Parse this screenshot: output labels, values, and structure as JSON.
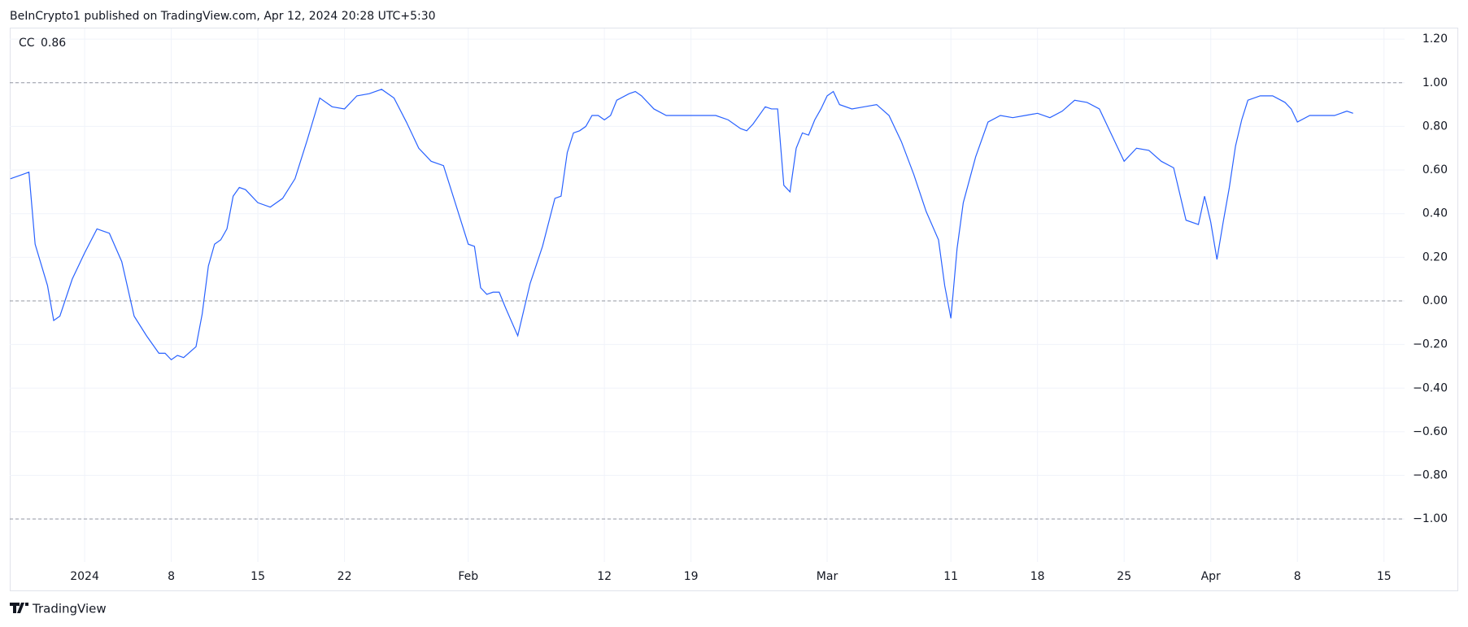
{
  "header": "BeInCrypto1 published on TradingView.com, Apr 12, 2024 20:28 UTC+5:30",
  "footer": "TradingView",
  "chart_data": {
    "type": "line",
    "legend_value": 0.86,
    "x": [
      -6,
      -5,
      -4.5,
      -4,
      -3,
      -2.5,
      -2,
      -1,
      0,
      1,
      1.5,
      2,
      3,
      4,
      5,
      6,
      6.5,
      7,
      7.5,
      8,
      9,
      9.5,
      10,
      10.5,
      11,
      11.5,
      12,
      12.5,
      13,
      14,
      15,
      16,
      17,
      18,
      19,
      20,
      21,
      22,
      23,
      24,
      25,
      26,
      27,
      28,
      29,
      30,
      31,
      31.5,
      32,
      32.5,
      33,
      33.5,
      34,
      35,
      36,
      37,
      38,
      38.5,
      39,
      39.5,
      40,
      40.5,
      41,
      41.5,
      42,
      42.5,
      43,
      44,
      44.5,
      45,
      46,
      47,
      48,
      49,
      50,
      51,
      52,
      53,
      53.5,
      54,
      55,
      55.5,
      56,
      56.5,
      57,
      57.5,
      58,
      58.5,
      59,
      59.5,
      60,
      60.5,
      61,
      62,
      63,
      64,
      65,
      66,
      67,
      68,
      69,
      69.5,
      70,
      70.5,
      71,
      72,
      73,
      74,
      75,
      76,
      77,
      78,
      79,
      80,
      81,
      82,
      83,
      84,
      85,
      86,
      87,
      88,
      89,
      90,
      90.5,
      91,
      91.5,
      92,
      92.5,
      93,
      93.5,
      94,
      95,
      96,
      97,
      97.5,
      98,
      99,
      100,
      101,
      102,
      102.5
    ],
    "series": [
      {
        "name": "CC",
        "color": "#2962ff",
        "values": [
          0.56,
          0.58,
          0.59,
          0.26,
          0.07,
          -0.09,
          -0.07,
          0.1,
          0.22,
          0.33,
          0.32,
          0.31,
          0.18,
          -0.07,
          -0.16,
          -0.24,
          -0.24,
          -0.27,
          -0.25,
          -0.26,
          -0.21,
          -0.06,
          0.16,
          0.26,
          0.28,
          0.33,
          0.48,
          0.52,
          0.51,
          0.45,
          0.43,
          0.47,
          0.56,
          0.74,
          0.93,
          0.89,
          0.88,
          0.94,
          0.95,
          0.97,
          0.93,
          0.82,
          0.7,
          0.64,
          0.62,
          0.44,
          0.26,
          0.25,
          0.06,
          0.03,
          0.04,
          0.04,
          -0.03,
          -0.16,
          0.08,
          0.25,
          0.47,
          0.48,
          0.68,
          0.77,
          0.78,
          0.8,
          0.85,
          0.85,
          0.83,
          0.85,
          0.92,
          0.95,
          0.96,
          0.94,
          0.88,
          0.85,
          0.85,
          0.85,
          0.85,
          0.85,
          0.83,
          0.79,
          0.78,
          0.81,
          0.89,
          0.88,
          0.88,
          0.53,
          0.5,
          0.7,
          0.77,
          0.76,
          0.83,
          0.88,
          0.94,
          0.96,
          0.9,
          0.88,
          0.89,
          0.9,
          0.85,
          0.73,
          0.58,
          0.41,
          0.28,
          0.07,
          -0.08,
          0.24,
          0.45,
          0.66,
          0.82,
          0.85,
          0.84,
          0.85,
          0.86,
          0.84,
          0.87,
          0.92,
          0.91,
          0.88,
          0.76,
          0.64,
          0.7,
          0.69,
          0.64,
          0.61,
          0.37,
          0.35,
          0.48,
          0.36,
          0.19,
          0.36,
          0.52,
          0.71,
          0.83,
          0.92,
          0.94,
          0.94,
          0.91,
          0.88,
          0.82,
          0.85,
          0.85,
          0.85,
          0.87,
          0.86
        ]
      }
    ],
    "hlines": [
      1,
      0,
      -1
    ],
    "xlim": [
      -6.05,
      106.66
    ],
    "ylim": [
      -1.197,
      1.249
    ],
    "xticks": [
      {
        "value": 0,
        "label": "2024"
      },
      {
        "value": 7,
        "label": "8"
      },
      {
        "value": 14,
        "label": "15"
      },
      {
        "value": 21,
        "label": "22"
      },
      {
        "value": 31,
        "label": "Feb"
      },
      {
        "value": 42,
        "label": "12"
      },
      {
        "value": 49,
        "label": "19"
      },
      {
        "value": 60,
        "label": "Mar"
      },
      {
        "value": 70,
        "label": "11"
      },
      {
        "value": 77,
        "label": "18"
      },
      {
        "value": 84,
        "label": "25"
      },
      {
        "value": 91,
        "label": "Apr"
      },
      {
        "value": 98,
        "label": "8"
      },
      {
        "value": 105,
        "label": "15"
      }
    ],
    "yticks": [
      {
        "value": 1.2,
        "label": "1.20"
      },
      {
        "value": 1,
        "label": "1.00"
      },
      {
        "value": 0.8,
        "label": "0.80"
      },
      {
        "value": 0.6,
        "label": "0.60"
      },
      {
        "value": 0.4,
        "label": "0.40"
      },
      {
        "value": 0.2,
        "label": "0.20"
      },
      {
        "value": 0,
        "label": "0.00"
      },
      {
        "value": -0.2,
        "label": "−0.20"
      },
      {
        "value": -0.4,
        "label": "−0.40"
      },
      {
        "value": -0.6,
        "label": "−0.60"
      },
      {
        "value": -0.8,
        "label": "−0.80"
      },
      {
        "value": -1,
        "label": "−1.00"
      }
    ],
    "grid": true
  }
}
